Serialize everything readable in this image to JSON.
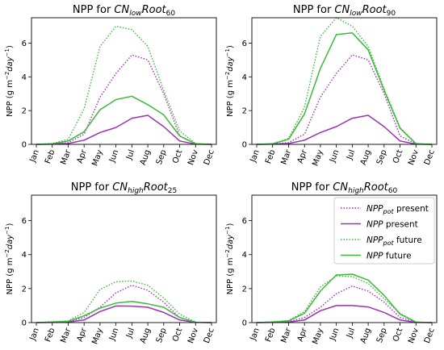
{
  "chart_data": [
    {
      "type": "line",
      "title": {
        "prefix": "NPP for ",
        "base": "CN",
        "sub": "low",
        "mid": "Root",
        "sub2": "60"
      },
      "ylabel": {
        "pre": "NPP (g m",
        "sup1": "−2",
        "mid": "day",
        "sup2": "−1",
        "post": ")"
      },
      "x": [
        "Jan",
        "Feb",
        "Mar",
        "Apr",
        "May",
        "Jun",
        "Jul",
        "Aug",
        "Sep",
        "Oct",
        "Nov",
        "Dec"
      ],
      "ylim": [
        0,
        7.5
      ],
      "yticks": [
        0,
        2,
        4,
        6
      ],
      "series": [
        {
          "name": "NPP_pot present",
          "style": "dotted",
          "color": "#9b30b8",
          "values": [
            0,
            0.02,
            0.1,
            0.6,
            2.8,
            4.2,
            5.3,
            5.0,
            3.0,
            0.5,
            0.03,
            0
          ]
        },
        {
          "name": "NPP present",
          "style": "solid",
          "color": "#9b30b8",
          "values": [
            0,
            0.01,
            0.05,
            0.25,
            0.7,
            1.0,
            1.55,
            1.72,
            1.05,
            0.2,
            0.01,
            0
          ]
        },
        {
          "name": "NPP_pot future",
          "style": "dotted",
          "color": "#3cb83c",
          "values": [
            0,
            0.05,
            0.3,
            2.1,
            5.8,
            7.0,
            6.8,
            5.8,
            3.2,
            0.8,
            0.05,
            0
          ]
        },
        {
          "name": "NPP future",
          "style": "solid",
          "color": "#3cb83c",
          "values": [
            0,
            0.03,
            0.2,
            0.75,
            2.05,
            2.65,
            2.85,
            2.35,
            1.75,
            0.5,
            0.03,
            0
          ]
        }
      ]
    },
    {
      "type": "line",
      "title": {
        "prefix": "NPP for ",
        "base": "CN",
        "sub": "low",
        "mid": "Root",
        "sub2": "90"
      },
      "ylabel": {
        "pre": "NPP (g m",
        "sup1": "−2",
        "mid": "day",
        "sup2": "−1",
        "post": ")"
      },
      "x": [
        "Jan",
        "Feb",
        "Mar",
        "Apr",
        "May",
        "Jun",
        "Jul",
        "Aug",
        "Sep",
        "Oct",
        "Nov",
        "Dec"
      ],
      "ylim": [
        0,
        7.5
      ],
      "yticks": [
        0,
        2,
        4,
        6
      ],
      "series": [
        {
          "name": "NPP_pot present",
          "style": "dotted",
          "color": "#9b30b8",
          "values": [
            0,
            0.02,
            0.1,
            0.6,
            2.8,
            4.2,
            5.3,
            5.0,
            3.0,
            0.5,
            0.03,
            0
          ]
        },
        {
          "name": "NPP present",
          "style": "solid",
          "color": "#9b30b8",
          "values": [
            0,
            0.01,
            0.05,
            0.25,
            0.7,
            1.05,
            1.55,
            1.72,
            1.05,
            0.2,
            0.01,
            0
          ]
        },
        {
          "name": "NPP_pot future",
          "style": "dotted",
          "color": "#3cb83c",
          "values": [
            0,
            0.05,
            0.35,
            2.2,
            6.4,
            7.5,
            7.0,
            5.8,
            3.3,
            1.0,
            0.05,
            0
          ]
        },
        {
          "name": "NPP future",
          "style": "solid",
          "color": "#3cb83c",
          "values": [
            0,
            0.03,
            0.3,
            1.8,
            4.5,
            6.5,
            6.6,
            5.6,
            3.2,
            0.95,
            0.04,
            0
          ]
        }
      ]
    },
    {
      "type": "line",
      "title": {
        "prefix": "NPP for ",
        "base": "CN",
        "sub": "high",
        "mid": "Root",
        "sub2": "25"
      },
      "ylabel": {
        "pre": "NPP (g m",
        "sup1": "−2",
        "mid": "day",
        "sup2": "−1",
        "post": ")"
      },
      "x": [
        "Jan",
        "Feb",
        "Mar",
        "Apr",
        "May",
        "Jun",
        "Jul",
        "Aug",
        "Sep",
        "Oct",
        "Nov",
        "Dec"
      ],
      "ylim": [
        0,
        7.5
      ],
      "yticks": [
        0,
        2,
        4,
        6
      ],
      "series": [
        {
          "name": "NPP_pot present",
          "style": "dotted",
          "color": "#9b30b8",
          "values": [
            0,
            0.02,
            0.05,
            0.3,
            0.9,
            1.75,
            2.2,
            1.9,
            1.2,
            0.3,
            0.02,
            0
          ]
        },
        {
          "name": "NPP present",
          "style": "solid",
          "color": "#9b30b8",
          "values": [
            0,
            0.01,
            0.03,
            0.15,
            0.65,
            0.98,
            0.97,
            0.9,
            0.6,
            0.15,
            0.01,
            0
          ]
        },
        {
          "name": "NPP_pot future",
          "style": "dotted",
          "color": "#3cb83c",
          "values": [
            0,
            0.05,
            0.1,
            0.6,
            1.95,
            2.4,
            2.45,
            2.2,
            1.45,
            0.5,
            0.03,
            0
          ]
        },
        {
          "name": "NPP future",
          "style": "solid",
          "color": "#3cb83c",
          "values": [
            0,
            0.03,
            0.07,
            0.4,
            0.85,
            1.15,
            1.25,
            1.1,
            0.9,
            0.3,
            0.02,
            0
          ]
        }
      ]
    },
    {
      "type": "line",
      "title": {
        "prefix": "NPP for ",
        "base": "CN",
        "sub": "high",
        "mid": "Root",
        "sub2": "60"
      },
      "ylabel": {
        "pre": "NPP (g m",
        "sup1": "−2",
        "mid": "day",
        "sup2": "−1",
        "post": ")"
      },
      "x": [
        "Jan",
        "Feb",
        "Mar",
        "Apr",
        "May",
        "Jun",
        "Jul",
        "Aug",
        "Sep",
        "Oct",
        "Nov",
        "Dec"
      ],
      "ylim": [
        0,
        7.5
      ],
      "yticks": [
        0,
        2,
        4,
        6
      ],
      "legend": {
        "placement": "upper-right"
      },
      "series": [
        {
          "name": "NPP_pot present",
          "legend_base": "NPP",
          "legend_sub": "pot",
          "legend_rest": " present",
          "style": "dotted",
          "color": "#9b30b8",
          "values": [
            0,
            0.02,
            0.05,
            0.3,
            0.9,
            1.7,
            2.15,
            1.85,
            1.2,
            0.3,
            0.02,
            0
          ]
        },
        {
          "name": "NPP present",
          "legend_base": "NPP",
          "legend_sub": "",
          "legend_rest": " present",
          "style": "solid",
          "color": "#9b30b8",
          "values": [
            0,
            0.01,
            0.03,
            0.15,
            0.7,
            1.0,
            1.0,
            0.92,
            0.6,
            0.15,
            0.01,
            0
          ]
        },
        {
          "name": "NPP_pot future",
          "legend_base": "NPP",
          "legend_sub": "pot",
          "legend_rest": " future",
          "style": "dotted",
          "color": "#3cb83c",
          "values": [
            0,
            0.05,
            0.12,
            0.65,
            2.1,
            2.75,
            2.7,
            2.3,
            1.4,
            0.55,
            0.03,
            0
          ]
        },
        {
          "name": "NPP future",
          "legend_base": "NPP",
          "legend_sub": "",
          "legend_rest": " future",
          "style": "solid",
          "color": "#3cb83c",
          "values": [
            0,
            0.03,
            0.1,
            0.55,
            1.85,
            2.8,
            2.85,
            2.5,
            1.6,
            0.5,
            0.03,
            0
          ]
        }
      ]
    }
  ]
}
